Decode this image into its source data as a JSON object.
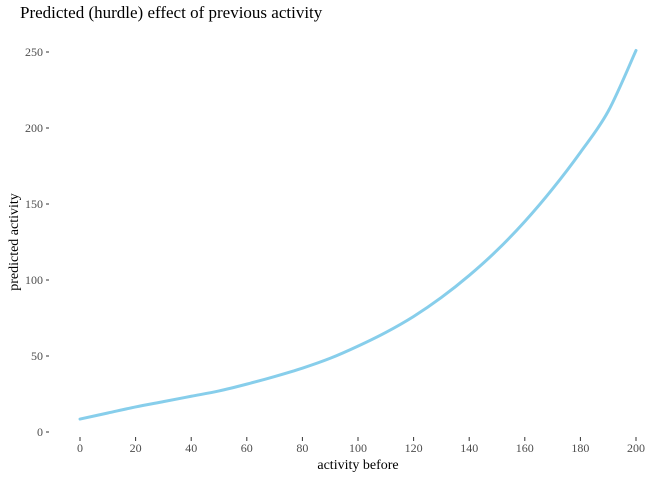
{
  "chart_data": {
    "type": "line",
    "title": "Predicted (hurdle) effect of previous activity",
    "xlabel": "activity before",
    "ylabel": "predicted activity",
    "xlim": [
      0,
      200
    ],
    "ylim": [
      0,
      250
    ],
    "x_ticks": [
      0,
      20,
      40,
      60,
      80,
      100,
      120,
      140,
      160,
      180,
      200
    ],
    "y_ticks": [
      0,
      50,
      100,
      150,
      200,
      250
    ],
    "grid": false,
    "line_color": "#87CEEB",
    "series": [
      {
        "x": [
          0,
          10,
          20,
          30,
          40,
          50,
          60,
          70,
          80,
          90,
          100,
          110,
          120,
          130,
          140,
          150,
          160,
          170,
          180,
          190,
          200
        ],
        "y": [
          8.5,
          12.5,
          16.5,
          20,
          23.5,
          27,
          31.5,
          36.5,
          42,
          48.5,
          56.5,
          65.5,
          76,
          88.5,
          103,
          119.5,
          138.5,
          160,
          184,
          211,
          251
        ]
      }
    ]
  }
}
